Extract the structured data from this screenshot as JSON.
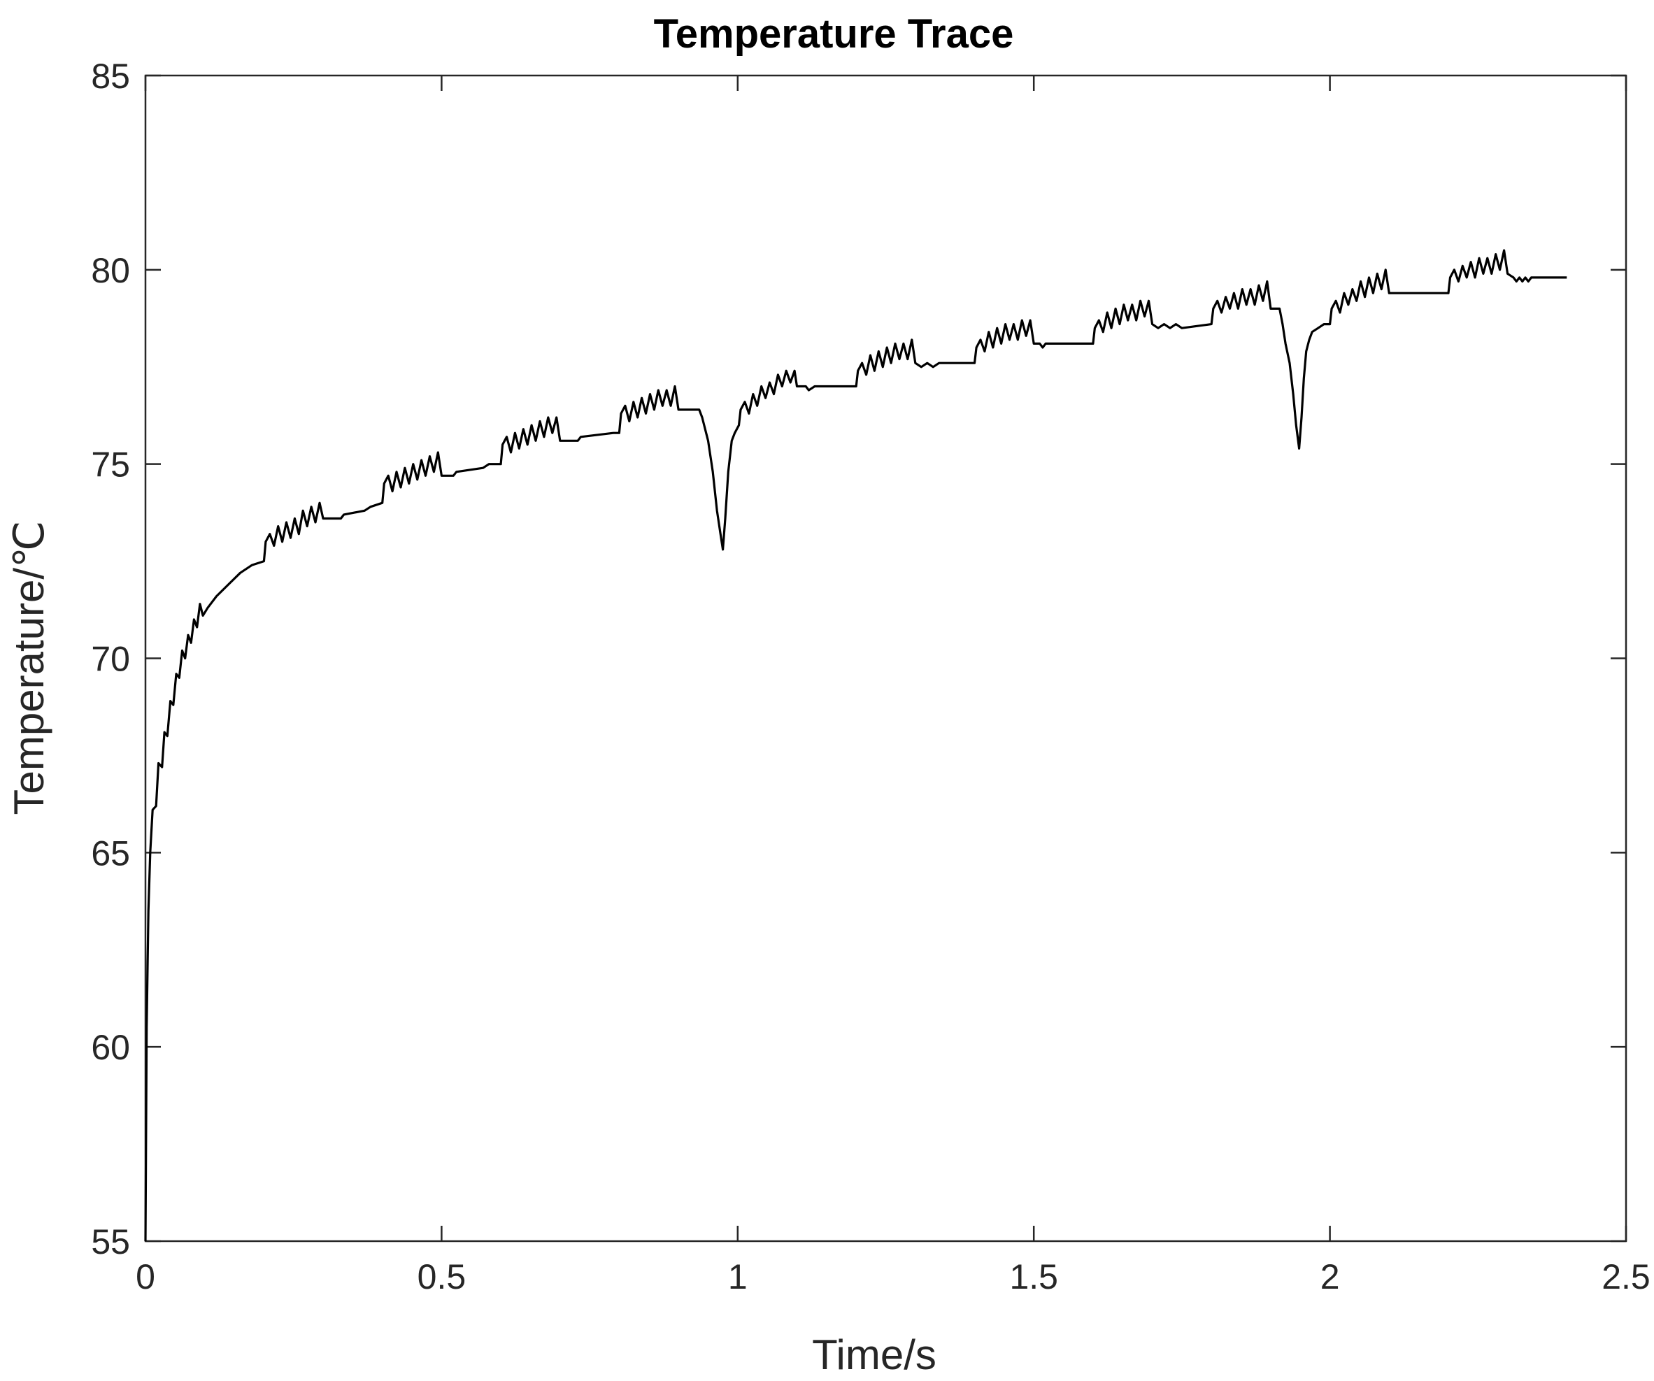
{
  "chart_data": {
    "type": "line",
    "title": "Temperature Trace",
    "xlabel": "Time/s",
    "ylabel": "Temperature/℃",
    "xlim": [
      0,
      2.5
    ],
    "ylim": [
      55,
      85
    ],
    "xticks": [
      0,
      0.5,
      1,
      1.5,
      2,
      2.5
    ],
    "xtick_labels": [
      "0",
      "0.5",
      "1",
      "1.5",
      "2",
      "2.5"
    ],
    "yticks": [
      55,
      60,
      65,
      70,
      75,
      80,
      85
    ],
    "ytick_labels": [
      "55",
      "60",
      "65",
      "70",
      "75",
      "80",
      "85"
    ],
    "grid": false,
    "legend": "none",
    "line_color": "#000000",
    "series": [
      {
        "points": [
          [
            0.0,
            55.0
          ],
          [
            0.002,
            60.5
          ],
          [
            0.005,
            63.5
          ],
          [
            0.008,
            65.0
          ],
          [
            0.012,
            66.1
          ],
          [
            0.018,
            66.2
          ],
          [
            0.022,
            67.3
          ],
          [
            0.028,
            67.2
          ],
          [
            0.032,
            68.1
          ],
          [
            0.037,
            68.0
          ],
          [
            0.042,
            68.9
          ],
          [
            0.047,
            68.8
          ],
          [
            0.052,
            69.6
          ],
          [
            0.057,
            69.5
          ],
          [
            0.062,
            70.2
          ],
          [
            0.067,
            70.0
          ],
          [
            0.072,
            70.6
          ],
          [
            0.077,
            70.4
          ],
          [
            0.082,
            71.0
          ],
          [
            0.087,
            70.8
          ],
          [
            0.092,
            71.4
          ],
          [
            0.097,
            71.1
          ],
          [
            0.105,
            71.3
          ],
          [
            0.12,
            71.6
          ],
          [
            0.14,
            71.9
          ],
          [
            0.16,
            72.2
          ],
          [
            0.18,
            72.4
          ],
          [
            0.2,
            72.5
          ],
          [
            0.203,
            73.0
          ],
          [
            0.21,
            73.2
          ],
          [
            0.217,
            72.9
          ],
          [
            0.224,
            73.4
          ],
          [
            0.231,
            73.0
          ],
          [
            0.238,
            73.5
          ],
          [
            0.245,
            73.1
          ],
          [
            0.252,
            73.6
          ],
          [
            0.259,
            73.2
          ],
          [
            0.266,
            73.8
          ],
          [
            0.273,
            73.4
          ],
          [
            0.28,
            73.9
          ],
          [
            0.287,
            73.5
          ],
          [
            0.294,
            74.0
          ],
          [
            0.3,
            73.6
          ],
          [
            0.33,
            73.6
          ],
          [
            0.335,
            73.7
          ],
          [
            0.37,
            73.8
          ],
          [
            0.38,
            73.9
          ],
          [
            0.4,
            74.0
          ],
          [
            0.403,
            74.5
          ],
          [
            0.41,
            74.7
          ],
          [
            0.417,
            74.3
          ],
          [
            0.424,
            74.8
          ],
          [
            0.431,
            74.4
          ],
          [
            0.438,
            74.9
          ],
          [
            0.445,
            74.5
          ],
          [
            0.452,
            75.0
          ],
          [
            0.459,
            74.6
          ],
          [
            0.466,
            75.1
          ],
          [
            0.473,
            74.7
          ],
          [
            0.48,
            75.2
          ],
          [
            0.487,
            74.8
          ],
          [
            0.494,
            75.3
          ],
          [
            0.5,
            74.7
          ],
          [
            0.52,
            74.7
          ],
          [
            0.525,
            74.8
          ],
          [
            0.57,
            74.9
          ],
          [
            0.58,
            75.0
          ],
          [
            0.6,
            75.0
          ],
          [
            0.603,
            75.5
          ],
          [
            0.61,
            75.7
          ],
          [
            0.617,
            75.3
          ],
          [
            0.624,
            75.8
          ],
          [
            0.631,
            75.4
          ],
          [
            0.638,
            75.9
          ],
          [
            0.645,
            75.5
          ],
          [
            0.652,
            76.0
          ],
          [
            0.659,
            75.6
          ],
          [
            0.666,
            76.1
          ],
          [
            0.673,
            75.7
          ],
          [
            0.68,
            76.2
          ],
          [
            0.687,
            75.8
          ],
          [
            0.694,
            76.2
          ],
          [
            0.7,
            75.6
          ],
          [
            0.73,
            75.6
          ],
          [
            0.735,
            75.7
          ],
          [
            0.79,
            75.8
          ],
          [
            0.8,
            75.8
          ],
          [
            0.803,
            76.3
          ],
          [
            0.81,
            76.5
          ],
          [
            0.817,
            76.1
          ],
          [
            0.824,
            76.6
          ],
          [
            0.831,
            76.2
          ],
          [
            0.838,
            76.7
          ],
          [
            0.845,
            76.3
          ],
          [
            0.852,
            76.8
          ],
          [
            0.859,
            76.4
          ],
          [
            0.866,
            76.9
          ],
          [
            0.873,
            76.5
          ],
          [
            0.88,
            76.9
          ],
          [
            0.887,
            76.5
          ],
          [
            0.894,
            77.0
          ],
          [
            0.9,
            76.4
          ],
          [
            0.935,
            76.4
          ],
          [
            0.94,
            76.2
          ],
          [
            0.95,
            75.6
          ],
          [
            0.958,
            74.8
          ],
          [
            0.965,
            73.8
          ],
          [
            0.971,
            73.2
          ],
          [
            0.975,
            72.8
          ],
          [
            0.979,
            73.6
          ],
          [
            0.984,
            74.8
          ],
          [
            0.99,
            75.6
          ],
          [
            0.995,
            75.8
          ],
          [
            1.002,
            76.0
          ],
          [
            1.005,
            76.4
          ],
          [
            1.012,
            76.6
          ],
          [
            1.019,
            76.3
          ],
          [
            1.026,
            76.8
          ],
          [
            1.033,
            76.5
          ],
          [
            1.04,
            77.0
          ],
          [
            1.047,
            76.7
          ],
          [
            1.054,
            77.1
          ],
          [
            1.061,
            76.8
          ],
          [
            1.068,
            77.3
          ],
          [
            1.075,
            77.0
          ],
          [
            1.082,
            77.4
          ],
          [
            1.089,
            77.1
          ],
          [
            1.096,
            77.4
          ],
          [
            1.1,
            77.0
          ],
          [
            1.115,
            77.0
          ],
          [
            1.12,
            76.9
          ],
          [
            1.13,
            77.0
          ],
          [
            1.2,
            77.0
          ],
          [
            1.203,
            77.4
          ],
          [
            1.21,
            77.6
          ],
          [
            1.217,
            77.3
          ],
          [
            1.224,
            77.8
          ],
          [
            1.231,
            77.4
          ],
          [
            1.238,
            77.9
          ],
          [
            1.245,
            77.5
          ],
          [
            1.252,
            78.0
          ],
          [
            1.259,
            77.6
          ],
          [
            1.266,
            78.1
          ],
          [
            1.273,
            77.7
          ],
          [
            1.28,
            78.1
          ],
          [
            1.287,
            77.7
          ],
          [
            1.294,
            78.2
          ],
          [
            1.3,
            77.6
          ],
          [
            1.31,
            77.5
          ],
          [
            1.32,
            77.6
          ],
          [
            1.33,
            77.5
          ],
          [
            1.34,
            77.6
          ],
          [
            1.4,
            77.6
          ],
          [
            1.403,
            78.0
          ],
          [
            1.41,
            78.2
          ],
          [
            1.417,
            77.9
          ],
          [
            1.424,
            78.4
          ],
          [
            1.431,
            78.0
          ],
          [
            1.438,
            78.5
          ],
          [
            1.445,
            78.1
          ],
          [
            1.452,
            78.6
          ],
          [
            1.459,
            78.2
          ],
          [
            1.466,
            78.6
          ],
          [
            1.473,
            78.2
          ],
          [
            1.48,
            78.7
          ],
          [
            1.487,
            78.3
          ],
          [
            1.494,
            78.7
          ],
          [
            1.5,
            78.1
          ],
          [
            1.51,
            78.1
          ],
          [
            1.515,
            78.0
          ],
          [
            1.52,
            78.1
          ],
          [
            1.6,
            78.1
          ],
          [
            1.603,
            78.5
          ],
          [
            1.61,
            78.7
          ],
          [
            1.617,
            78.4
          ],
          [
            1.624,
            78.9
          ],
          [
            1.631,
            78.5
          ],
          [
            1.638,
            79.0
          ],
          [
            1.645,
            78.6
          ],
          [
            1.652,
            79.1
          ],
          [
            1.659,
            78.7
          ],
          [
            1.666,
            79.1
          ],
          [
            1.673,
            78.7
          ],
          [
            1.68,
            79.2
          ],
          [
            1.687,
            78.8
          ],
          [
            1.694,
            79.2
          ],
          [
            1.7,
            78.6
          ],
          [
            1.71,
            78.5
          ],
          [
            1.72,
            78.6
          ],
          [
            1.73,
            78.5
          ],
          [
            1.74,
            78.6
          ],
          [
            1.75,
            78.5
          ],
          [
            1.8,
            78.6
          ],
          [
            1.803,
            79.0
          ],
          [
            1.81,
            79.2
          ],
          [
            1.817,
            78.9
          ],
          [
            1.824,
            79.3
          ],
          [
            1.831,
            79.0
          ],
          [
            1.838,
            79.4
          ],
          [
            1.845,
            79.0
          ],
          [
            1.852,
            79.5
          ],
          [
            1.859,
            79.1
          ],
          [
            1.866,
            79.5
          ],
          [
            1.873,
            79.1
          ],
          [
            1.88,
            79.6
          ],
          [
            1.887,
            79.2
          ],
          [
            1.894,
            79.7
          ],
          [
            1.9,
            79.0
          ],
          [
            1.915,
            79.0
          ],
          [
            1.92,
            78.6
          ],
          [
            1.925,
            78.1
          ],
          [
            1.932,
            77.6
          ],
          [
            1.938,
            76.8
          ],
          [
            1.943,
            76.0
          ],
          [
            1.948,
            75.4
          ],
          [
            1.952,
            76.2
          ],
          [
            1.956,
            77.2
          ],
          [
            1.96,
            77.9
          ],
          [
            1.965,
            78.2
          ],
          [
            1.97,
            78.4
          ],
          [
            1.98,
            78.5
          ],
          [
            1.99,
            78.6
          ],
          [
            2.0,
            78.6
          ],
          [
            2.003,
            79.0
          ],
          [
            2.01,
            79.2
          ],
          [
            2.017,
            78.9
          ],
          [
            2.024,
            79.4
          ],
          [
            2.031,
            79.1
          ],
          [
            2.038,
            79.5
          ],
          [
            2.045,
            79.2
          ],
          [
            2.052,
            79.7
          ],
          [
            2.059,
            79.3
          ],
          [
            2.066,
            79.8
          ],
          [
            2.073,
            79.4
          ],
          [
            2.08,
            79.9
          ],
          [
            2.087,
            79.5
          ],
          [
            2.094,
            80.0
          ],
          [
            2.1,
            79.4
          ],
          [
            2.2,
            79.4
          ],
          [
            2.203,
            79.8
          ],
          [
            2.21,
            80.0
          ],
          [
            2.217,
            79.7
          ],
          [
            2.224,
            80.1
          ],
          [
            2.231,
            79.8
          ],
          [
            2.238,
            80.2
          ],
          [
            2.245,
            79.8
          ],
          [
            2.252,
            80.3
          ],
          [
            2.259,
            79.9
          ],
          [
            2.266,
            80.3
          ],
          [
            2.273,
            79.9
          ],
          [
            2.28,
            80.4
          ],
          [
            2.287,
            80.0
          ],
          [
            2.294,
            80.5
          ],
          [
            2.3,
            79.9
          ],
          [
            2.31,
            79.8
          ],
          [
            2.315,
            79.7
          ],
          [
            2.32,
            79.8
          ],
          [
            2.325,
            79.7
          ],
          [
            2.33,
            79.8
          ],
          [
            2.335,
            79.7
          ],
          [
            2.34,
            79.8
          ],
          [
            2.35,
            79.8
          ],
          [
            2.4,
            79.8
          ]
        ]
      }
    ]
  }
}
